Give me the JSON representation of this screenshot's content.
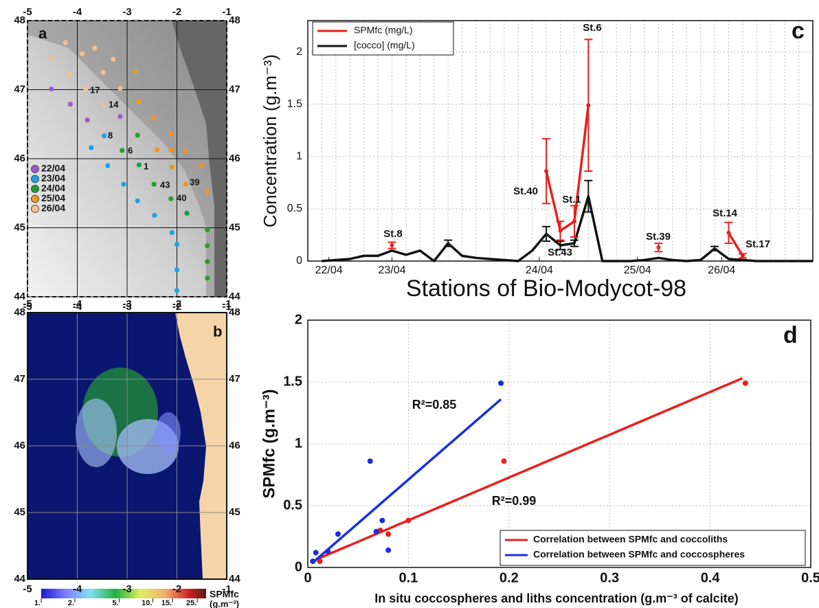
{
  "chart_data": [
    {
      "type": "map-scatter",
      "panel": "a",
      "xlim": [
        -5,
        -1
      ],
      "ylim": [
        44,
        48
      ],
      "xticks": [
        -5,
        -4,
        -3,
        -2,
        -1
      ],
      "yticks": [
        44,
        45,
        46,
        47,
        48
      ],
      "series": [
        {
          "name": "22/04",
          "color": "#9b59d0",
          "x": [
            -4.52,
            -4.14,
            -3.8,
            -3.14
          ],
          "y": [
            47.01,
            46.79,
            46.56,
            46.61
          ]
        },
        {
          "name": "23/04",
          "color": "#1aa3e8",
          "x": [
            -3.46,
            -3.72,
            -3.39,
            -3.07,
            -2.79,
            -2.45,
            -2.1,
            -2.0,
            -2.0,
            -2.0
          ],
          "y": [
            46.33,
            46.16,
            45.9,
            45.63,
            45.39,
            45.18,
            44.93,
            44.76,
            44.39,
            44.09
          ]
        },
        {
          "name": "24/04",
          "color": "#1f9e2f",
          "x": [
            -2.79,
            -3.1,
            -2.76,
            -2.46,
            -2.12,
            -1.8,
            -1.39,
            -1.39,
            -1.39,
            -1.39
          ],
          "y": [
            46.34,
            46.12,
            45.91,
            45.63,
            45.42,
            45.21,
            44.97,
            44.74,
            44.51,
            44.27
          ]
        },
        {
          "name": "25/04",
          "color": "#f0961e",
          "x": [
            -2.83,
            -2.77,
            -2.47,
            -2.12,
            -2.4,
            -2.12,
            -1.82,
            -1.52,
            -1.39,
            -1.82,
            -2.1
          ],
          "y": [
            47.26,
            46.83,
            46.59,
            46.36,
            46.13,
            46.13,
            46.11,
            45.91,
            45.52,
            45.63,
            45.88
          ]
        },
        {
          "name": "26/04",
          "color": "#f5c08a",
          "x": [
            -4.52,
            -4.24,
            -3.9,
            -3.65,
            -3.28,
            -3.48,
            -4.15,
            -3.83,
            -3.14,
            -3.48
          ],
          "y": [
            47.45,
            47.68,
            47.52,
            47.6,
            47.44,
            47.25,
            47.22,
            47.0,
            47.02,
            46.77
          ]
        }
      ],
      "annotations": [
        "17",
        "14",
        "8",
        "6",
        "1",
        "43",
        "40",
        "39"
      ]
    },
    {
      "type": "map-image",
      "panel": "b",
      "xlim": [
        -5,
        -1
      ],
      "ylim": [
        44,
        48
      ],
      "xticks": [
        -5,
        -4,
        -3,
        -2,
        -1
      ],
      "yticks": [
        44,
        45,
        46,
        47,
        48
      ],
      "colorbar": {
        "label": "SPMfc",
        "unit": "(g.m⁻³)",
        "lim": [
          1,
          30
        ],
        "log": true,
        "ticks": [
          {
            "value": 1,
            "label": "1."
          },
          {
            "value": 2,
            "label": "2."
          },
          {
            "value": 5,
            "label": "5."
          },
          {
            "value": 10,
            "label": "10."
          },
          {
            "value": 15,
            "label": "15."
          },
          {
            "value": 25,
            "label": "25."
          }
        ]
      }
    },
    {
      "type": "line",
      "panel": "c",
      "ylabel": "Concentration (g.m⁻³)",
      "xlabel": "Stations of Bio-Modycot-98",
      "x": [
        1,
        2,
        3,
        4,
        5,
        6,
        7,
        8,
        9,
        10,
        11,
        12,
        13,
        14,
        15,
        16,
        17,
        18,
        19,
        20,
        21,
        22,
        23,
        24,
        25,
        26,
        27,
        28,
        29,
        30,
        31,
        32,
        33,
        34,
        35,
        36
      ],
      "xlim": [
        0,
        36
      ],
      "xticks": [
        {
          "value": 1.5,
          "label": "22/04"
        },
        {
          "value": 6,
          "label": "23/04"
        },
        {
          "value": 16.5,
          "label": "24/04"
        },
        {
          "value": 23.5,
          "label": "25/04"
        },
        {
          "value": 29.5,
          "label": "26/04"
        }
      ],
      "ylim": [
        0,
        2.3
      ],
      "yticks": [
        0,
        0.5,
        1,
        1.5,
        2
      ],
      "grid": true,
      "series": [
        {
          "name": "SPMfc (mg/L)",
          "color": "#e8201c",
          "values": [
            null,
            null,
            null,
            null,
            null,
            0.15,
            null,
            null,
            null,
            null,
            null,
            null,
            null,
            null,
            null,
            null,
            0.86,
            0.29,
            0.38,
            1.49,
            null,
            null,
            null,
            null,
            0.13,
            null,
            null,
            null,
            null,
            0.27,
            0.05,
            null,
            null,
            null,
            null,
            null
          ],
          "errors": [
            null,
            null,
            null,
            null,
            null,
            0.03,
            null,
            null,
            null,
            null,
            null,
            null,
            null,
            null,
            null,
            null,
            0.31,
            0.09,
            0.15,
            0.63,
            null,
            null,
            null,
            null,
            0.04,
            null,
            null,
            null,
            null,
            0.1,
            0.02,
            null,
            null,
            null,
            null,
            null
          ]
        },
        {
          "name": "[cocco] (mg/L)",
          "color": "#111111",
          "values": [
            0,
            0.01,
            0.02,
            0.05,
            0.05,
            0.1,
            0.06,
            0.1,
            0,
            0.17,
            0.05,
            0.03,
            0.02,
            0.01,
            0,
            0.1,
            0.26,
            0.15,
            0.17,
            0.62,
            0,
            0,
            0,
            0.01,
            0.03,
            0.01,
            0,
            0.01,
            0.12,
            0.02,
            0.01,
            0,
            0,
            0,
            0,
            0
          ],
          "errors": [
            null,
            null,
            null,
            null,
            null,
            null,
            null,
            null,
            null,
            0.03,
            null,
            null,
            null,
            null,
            null,
            null,
            0.07,
            0.04,
            0.03,
            0.15,
            null,
            null,
            null,
            null,
            null,
            null,
            null,
            null,
            0.02,
            null,
            null,
            null,
            null,
            null,
            null,
            null
          ]
        }
      ],
      "annotations": [
        "St.8",
        "St.40",
        "St.1",
        "St.6",
        "St.43",
        "St.39",
        "St.14",
        "St.17"
      ]
    },
    {
      "type": "scatter",
      "panel": "d",
      "ylabel": "SPMfc (g.m⁻³)",
      "xlabel": "In situ coccospheres and liths concentration (g.m⁻³ of calcite)",
      "xlim": [
        0,
        0.5
      ],
      "ylim": [
        0,
        2
      ],
      "xticks": [
        0,
        0.1,
        0.2,
        0.3,
        0.4,
        0.5
      ],
      "yticks": [
        0,
        0.5,
        1,
        1.5,
        2
      ],
      "grid": true,
      "series": [
        {
          "name": "Correlation between SPMfc and coccoliths",
          "color": "#e8201c",
          "x": [
            0.012,
            0.02,
            0.072,
            0.08,
            0.1,
            0.195,
            0.435
          ],
          "y": [
            0.05,
            0.13,
            0.3,
            0.27,
            0.38,
            0.86,
            1.49
          ],
          "fit": {
            "x": [
              0.01,
              0.432
            ],
            "y": [
              0.07,
              1.53
            ]
          }
        },
        {
          "name": "Correlation between SPMfc and coccospheres",
          "color": "#1a2ee0",
          "x": [
            0.005,
            0.008,
            0.02,
            0.03,
            0.068,
            0.074,
            0.08,
            0.062,
            0.192
          ],
          "y": [
            0.05,
            0.12,
            0.13,
            0.27,
            0.29,
            0.38,
            0.14,
            0.86,
            1.49
          ],
          "fit": {
            "x": [
              0.005,
              0.192
            ],
            "y": [
              0.04,
              1.36
            ]
          }
        }
      ],
      "annotations": [
        "R²=0.85",
        "R²=0.99"
      ]
    }
  ]
}
